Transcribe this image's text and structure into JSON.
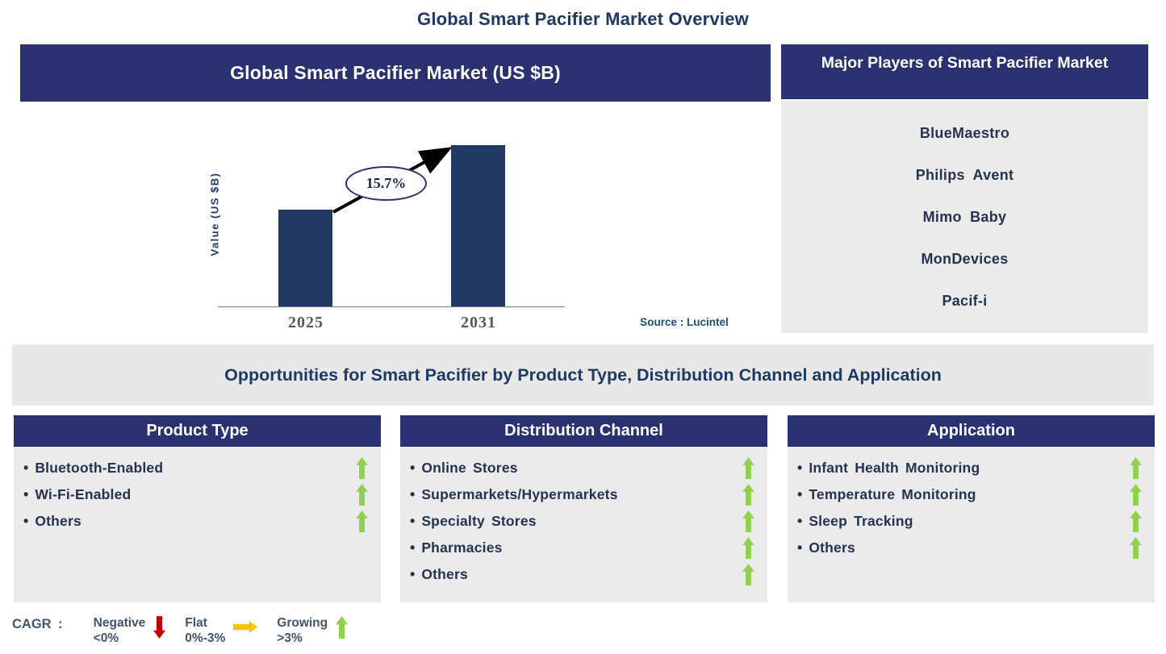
{
  "page_title": "Global Smart Pacifier Market Overview",
  "chart_panel": {
    "title": "Global Smart Pacifier Market (US $B)"
  },
  "chart_data": {
    "type": "bar",
    "title": "Global Smart Pacifier Market (US $B)",
    "categories": [
      "2025",
      "2031"
    ],
    "values_relative_height": [
      0.6,
      1.0
    ],
    "ylabel": "Value (US $B)",
    "numeric_axis_shown": false,
    "grid": false,
    "cagr_label": "15.7%",
    "source": "Source : Lucintel",
    "bar_color": "#203864",
    "axis_label_color": "#595959"
  },
  "players_panel": {
    "title": "Major Players of Smart Pacifier Market",
    "players": [
      "BlueMaestro",
      "Philips Avent",
      "Mimo Baby",
      "MonDevices",
      "Pacif-i"
    ]
  },
  "opportunities_banner": "Opportunities for Smart Pacifier by Product Type, Distribution Channel and Application",
  "columns": [
    {
      "title": "Product Type",
      "items": [
        {
          "label": "Bluetooth-Enabled",
          "trend": "growing"
        },
        {
          "label": "Wi-Fi-Enabled",
          "trend": "growing"
        },
        {
          "label": "Others",
          "trend": "growing"
        }
      ]
    },
    {
      "title": "Distribution Channel",
      "items": [
        {
          "label": "Online Stores",
          "trend": "growing"
        },
        {
          "label": "Supermarkets/Hypermarkets",
          "trend": "growing"
        },
        {
          "label": "Specialty Stores",
          "trend": "growing"
        },
        {
          "label": "Pharmacies",
          "trend": "growing"
        },
        {
          "label": "Others",
          "trend": "growing"
        }
      ]
    },
    {
      "title": "Application",
      "items": [
        {
          "label": "Infant Health Monitoring",
          "trend": "growing"
        },
        {
          "label": "Temperature Monitoring",
          "trend": "growing"
        },
        {
          "label": "Sleep Tracking",
          "trend": "growing"
        },
        {
          "label": "Others",
          "trend": "growing"
        }
      ]
    }
  ],
  "legend": {
    "prefix": "CAGR :",
    "entries": [
      {
        "label": "Negative",
        "range": "<0%",
        "direction": "down",
        "color": "#C00000"
      },
      {
        "label": "Flat",
        "range": "0%-3%",
        "direction": "right",
        "color": "#FFC000"
      },
      {
        "label": "Growing",
        "range": ">3%",
        "direction": "up",
        "color": "#92D050"
      }
    ]
  },
  "colors": {
    "header_navy": "#2B3170",
    "bar_navy": "#203864",
    "title_text": "#1F3864",
    "item_text": "#253350",
    "panel_gray": "#EBEBEB",
    "banner_gray": "#E8E8E8",
    "growing_green": "#92D050",
    "negative_red": "#C00000",
    "flat_orange": "#FFC000",
    "source_blue": "#1F4E79"
  }
}
